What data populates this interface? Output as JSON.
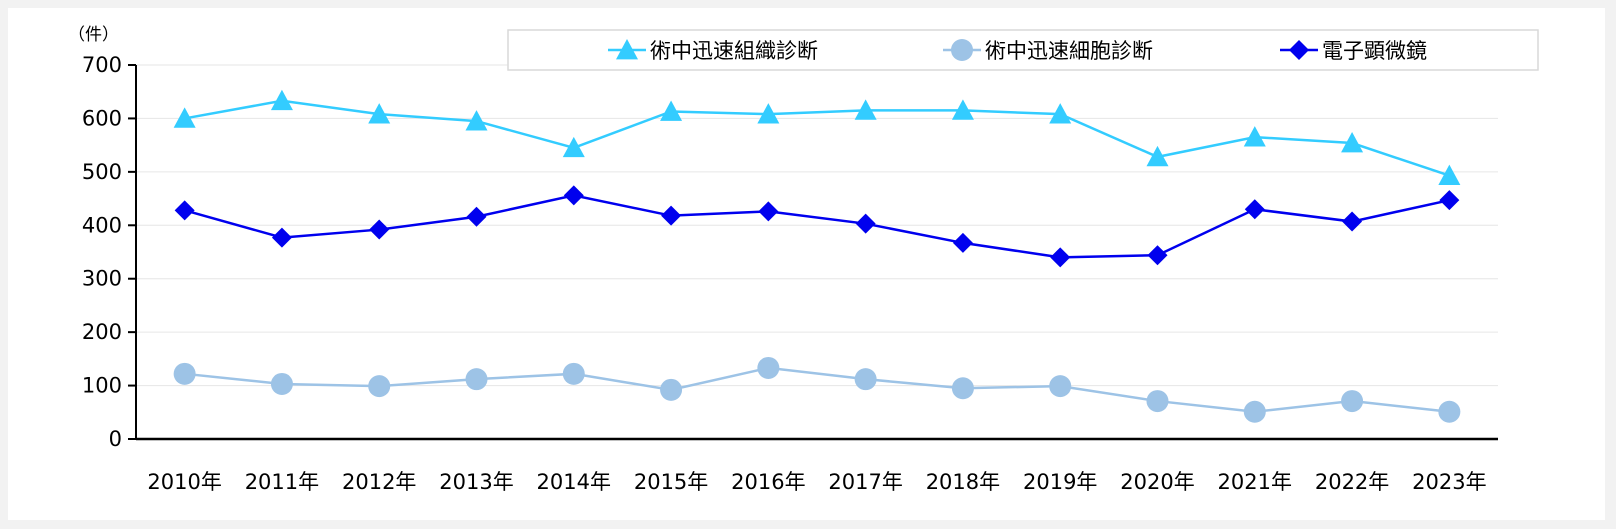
{
  "chart_data": {
    "type": "line",
    "unit_label": "（件）",
    "categories": [
      "2010年",
      "2011年",
      "2012年",
      "2013年",
      "2014年",
      "2015年",
      "2016年",
      "2017年",
      "2018年",
      "2019年",
      "2020年",
      "2021年",
      "2022年",
      "2023年"
    ],
    "ylim": [
      0,
      700
    ],
    "yticks": [
      0,
      100,
      200,
      300,
      400,
      500,
      600,
      700
    ],
    "grid": true,
    "legend_position": "top-right",
    "series": [
      {
        "name": "術中迅速組織診断",
        "marker": "triangle",
        "color": "#33ccff",
        "values": [
          600,
          633,
          608,
          595,
          545,
          613,
          608,
          615,
          615,
          608,
          528,
          565,
          554,
          493
        ]
      },
      {
        "name": "術中迅速細胞診断",
        "marker": "circle",
        "color": "#9dc3e6",
        "values": [
          122,
          103,
          99,
          112,
          122,
          92,
          133,
          112,
          95,
          99,
          71,
          51,
          71,
          51
        ]
      },
      {
        "name": "電子顕微鏡",
        "marker": "diamond",
        "color": "#0000ee",
        "values": [
          428,
          377,
          392,
          416,
          456,
          418,
          426,
          403,
          367,
          340,
          344,
          430,
          407,
          447
        ]
      }
    ]
  }
}
